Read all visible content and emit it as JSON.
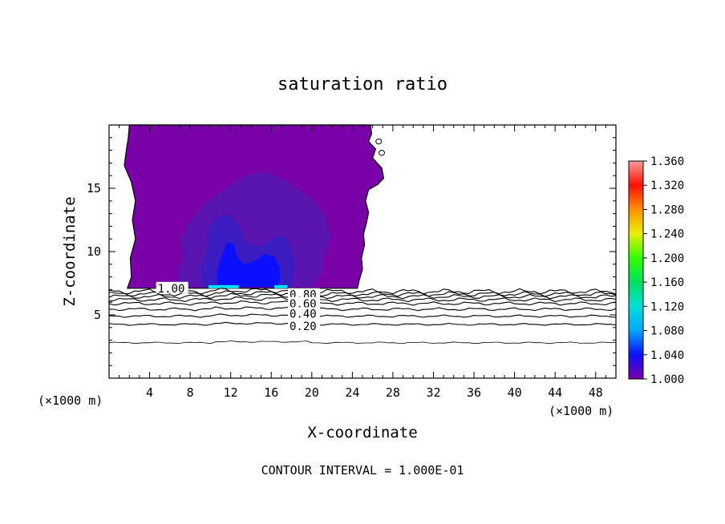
{
  "chart_data": {
    "type": "contour",
    "title": "saturation ratio",
    "xlabel": "X-coordinate",
    "ylabel": "Z-coordinate",
    "x_unit_label": "(×1000 m)",
    "z_unit_label": "(×1000 m)",
    "footer": "CONTOUR INTERVAL = 1.000E-01",
    "xlim": [
      0,
      50
    ],
    "ylim": [
      0,
      20
    ],
    "x_ticks": [
      4,
      8,
      12,
      16,
      20,
      24,
      28,
      32,
      36,
      40,
      44,
      48
    ],
    "y_ticks": [
      5,
      10,
      15
    ],
    "colorbar": {
      "min": 1.0,
      "max": 1.36,
      "ticks": [
        "1.360",
        "1.320",
        "1.280",
        "1.240",
        "1.200",
        "1.160",
        "1.120",
        "1.080",
        "1.040",
        "1.000"
      ],
      "stops": [
        {
          "value": 1.0,
          "color": "#7a00a8"
        },
        {
          "value": 1.04,
          "color": "#0a10ff"
        },
        {
          "value": 1.08,
          "color": "#00a8ff"
        },
        {
          "value": 1.12,
          "color": "#00e0d8"
        },
        {
          "value": 1.16,
          "color": "#00e060"
        },
        {
          "value": 1.2,
          "color": "#30ff00"
        },
        {
          "value": 1.24,
          "color": "#e8f000"
        },
        {
          "value": 1.28,
          "color": "#ff9000"
        },
        {
          "value": 1.32,
          "color": "#ff1000"
        },
        {
          "value": 1.36,
          "color": "#ff9a9a"
        }
      ]
    },
    "region_colors": {
      "level_1_00": "#7a00a8",
      "level_1_01": "#5a14b0",
      "level_1_02": "#3a1cc0",
      "level_1_03": "#0a10ff",
      "level_1_10": "#00e0ff"
    },
    "contour_labels": [
      {
        "text": "1.00",
        "x": 4.8,
        "z": 7.1
      },
      {
        "text": "0.80",
        "x": 17.8,
        "z": 6.6
      },
      {
        "text": "0.60",
        "x": 17.8,
        "z": 5.9
      },
      {
        "text": "0.40",
        "x": 17.8,
        "z": 5.1
      },
      {
        "text": "0.20",
        "x": 17.8,
        "z": 4.1
      }
    ],
    "contour_lines": [
      {
        "value": 0.1,
        "z": 2.8
      },
      {
        "value": 0.2,
        "z": 4.25
      },
      {
        "value": 0.3,
        "z": 4.9
      },
      {
        "value": 0.4,
        "z": 5.45
      },
      {
        "value": 0.5,
        "z": 5.9
      },
      {
        "value": 0.6,
        "z": 6.2
      },
      {
        "value": 0.7,
        "z": 6.45
      },
      {
        "value": 0.8,
        "z": 6.65
      },
      {
        "value": 0.9,
        "z": 6.85
      }
    ]
  }
}
